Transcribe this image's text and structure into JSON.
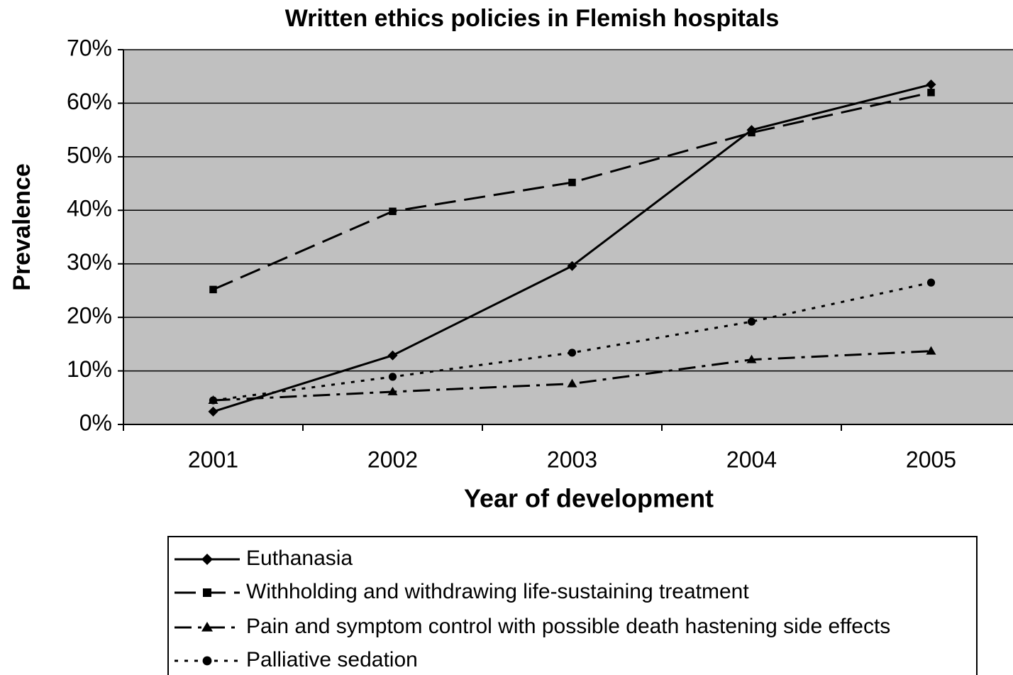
{
  "chart_data": {
    "type": "line",
    "title": "Written ethics policies in Flemish hospitals",
    "x_label": "Year of development",
    "y_label": "Prevalence",
    "categories": [
      "2001",
      "2002",
      "2003",
      "2004",
      "2005"
    ],
    "series": [
      {
        "name": "Euthanasia",
        "color": "#000000",
        "dash": "solid",
        "marker": "diamond",
        "values": [
          2.4,
          12.9,
          29.6,
          55.0,
          63.5
        ]
      },
      {
        "name": "Withholding and withdrawing life-sustaining treatment",
        "color": "#000000",
        "dash": "dashed",
        "marker": "square",
        "values": [
          25.2,
          39.8,
          45.2,
          54.5,
          62.0
        ]
      },
      {
        "name": "Pain and symptom control with possible death hastening side effects",
        "color": "#000000",
        "dash": "dashdot",
        "marker": "triangle",
        "values": [
          4.5,
          6.1,
          7.6,
          12.1,
          13.7
        ]
      },
      {
        "name": "Palliative sedation",
        "color": "#000000",
        "dash": "dotted",
        "marker": "circle",
        "values": [
          4.5,
          8.9,
          13.4,
          19.2,
          26.5
        ]
      }
    ],
    "ylim": [
      0,
      70
    ],
    "yticks": [
      {
        "value": 0,
        "label": "0%"
      },
      {
        "value": 10,
        "label": "10%"
      },
      {
        "value": 20,
        "label": "20%"
      },
      {
        "value": 30,
        "label": "30%"
      },
      {
        "value": 40,
        "label": "40%"
      },
      {
        "value": 50,
        "label": "50%"
      },
      {
        "value": 60,
        "label": "60%"
      },
      {
        "value": 70,
        "label": "70%"
      }
    ],
    "grid": true,
    "legend": "bottom"
  }
}
